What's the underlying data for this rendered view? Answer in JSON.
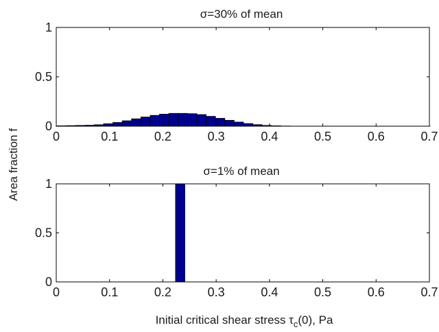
{
  "figure": {
    "ylabel": "Area fraction f",
    "xlabel_main": "Initial critical shear stress τ",
    "xlabel_sub": "c",
    "xlabel_tail": "(0), Pa"
  },
  "colors": {
    "bar_fill": "#00008f",
    "bar_edge": "#000000",
    "axes": "#000000",
    "background": "#ffffff"
  },
  "chart_data": [
    {
      "type": "bar",
      "title": "σ=30% of mean",
      "xlim": [
        0,
        0.7
      ],
      "ylim": [
        0,
        1
      ],
      "xticks": [
        0,
        0.1,
        0.2,
        0.3,
        0.4,
        0.5,
        0.6,
        0.7
      ],
      "xtick_labels": [
        "0",
        "0.1",
        "0.2",
        "0.3",
        "0.4",
        "0.5",
        "0.6",
        "0.7"
      ],
      "yticks": [
        0,
        0.5,
        1
      ],
      "ytick_labels": [
        "0",
        "0.5",
        "1"
      ],
      "bin_width": 0.0175,
      "bin_centers": [
        0.01,
        0.0275,
        0.045,
        0.0625,
        0.08,
        0.0975,
        0.115,
        0.1325,
        0.15,
        0.1675,
        0.185,
        0.2025,
        0.22,
        0.2375,
        0.255,
        0.2725,
        0.29,
        0.3075,
        0.325,
        0.3425,
        0.36,
        0.3775,
        0.395,
        0.4125,
        0.43,
        0.4475,
        0.465,
        0.4825,
        0.5,
        0.5175,
        0.535,
        0.5525,
        0.57,
        0.5875,
        0.605,
        0.6225,
        0.64,
        0.6575,
        0.675,
        0.6925
      ],
      "values": [
        0.004,
        0.006,
        0.008,
        0.01,
        0.015,
        0.025,
        0.038,
        0.055,
        0.075,
        0.093,
        0.11,
        0.122,
        0.13,
        0.13,
        0.127,
        0.118,
        0.1,
        0.08,
        0.06,
        0.042,
        0.027,
        0.016,
        0.008,
        0.004,
        0.002,
        0.001,
        0.001,
        0.001,
        0.001,
        0.001,
        0.001,
        0.001,
        0.001,
        0.001,
        0.001,
        0.001,
        0.001,
        0.001,
        0.001,
        0.001
      ]
    },
    {
      "type": "bar",
      "title": "σ=1% of mean",
      "xlim": [
        0,
        0.7
      ],
      "ylim": [
        0,
        1
      ],
      "xticks": [
        0,
        0.1,
        0.2,
        0.3,
        0.4,
        0.5,
        0.6,
        0.7
      ],
      "xtick_labels": [
        "0",
        "0.1",
        "0.2",
        "0.3",
        "0.4",
        "0.5",
        "0.6",
        "0.7"
      ],
      "yticks": [
        0,
        0.5,
        1
      ],
      "ytick_labels": [
        "0",
        "0.5",
        "1"
      ],
      "bin_width": 0.0175,
      "bin_centers": [
        0.2325
      ],
      "values": [
        1.0
      ]
    }
  ]
}
